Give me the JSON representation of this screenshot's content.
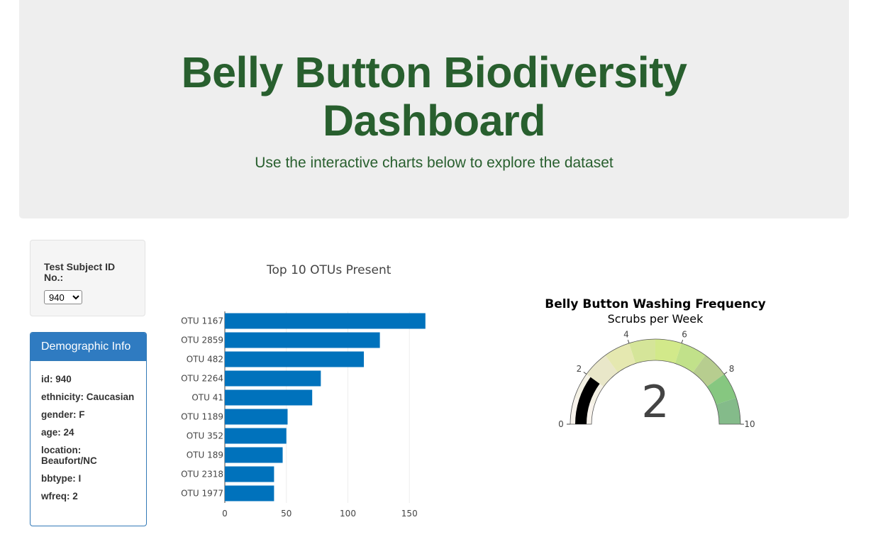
{
  "header": {
    "title_line1": "Belly Button Biodiversity",
    "title_line2": "Dashboard",
    "subtitle": "Use the interactive charts below to explore the dataset"
  },
  "selector": {
    "label": "Test Subject ID No.:",
    "selected": "940"
  },
  "demographics": {
    "heading": "Demographic Info",
    "rows": [
      "id: 940",
      "ethnicity: Caucasian",
      "gender: F",
      "age: 24",
      "location: Beaufort/NC",
      "bbtype: I",
      "wfreq: 2"
    ]
  },
  "chart_data": [
    {
      "type": "bar",
      "orientation": "horizontal",
      "title": "Top 10 OTUs Present",
      "categories": [
        "OTU 1167",
        "OTU 2859",
        "OTU 482",
        "OTU 2264",
        "OTU 41",
        "OTU 1189",
        "OTU 352",
        "OTU 189",
        "OTU 2318",
        "OTU 1977"
      ],
      "values": [
        163,
        126,
        113,
        78,
        71,
        51,
        50,
        47,
        40,
        40
      ],
      "xticks": [
        0,
        50,
        100,
        150
      ],
      "xlim": [
        0,
        170
      ],
      "grid": true,
      "color": "#0072bc"
    },
    {
      "type": "gauge",
      "title": "Belly Button Washing Frequency",
      "subtitle": "Scrubs per Week",
      "value": 2,
      "range": [
        0,
        10
      ],
      "ticks": [
        0,
        2,
        4,
        6,
        8,
        10
      ],
      "bar_color": "#000000",
      "steps": [
        {
          "from": 0,
          "to": 1,
          "color": "#f8f3ec"
        },
        {
          "from": 1,
          "to": 2,
          "color": "#f4f1e4"
        },
        {
          "from": 2,
          "to": 3,
          "color": "#e9e7c9"
        },
        {
          "from": 3,
          "to": 4,
          "color": "#e5e8b0"
        },
        {
          "from": 4,
          "to": 5,
          "color": "#d5e599"
        },
        {
          "from": 5,
          "to": 6,
          "color": "#d2e98a"
        },
        {
          "from": 6,
          "to": 7,
          "color": "#c1e18a"
        },
        {
          "from": 7,
          "to": 8,
          "color": "#b7cd8f"
        },
        {
          "from": 8,
          "to": 9,
          "color": "#86c780"
        },
        {
          "from": 9,
          "to": 10,
          "color": "#84bb8a"
        }
      ]
    }
  ]
}
